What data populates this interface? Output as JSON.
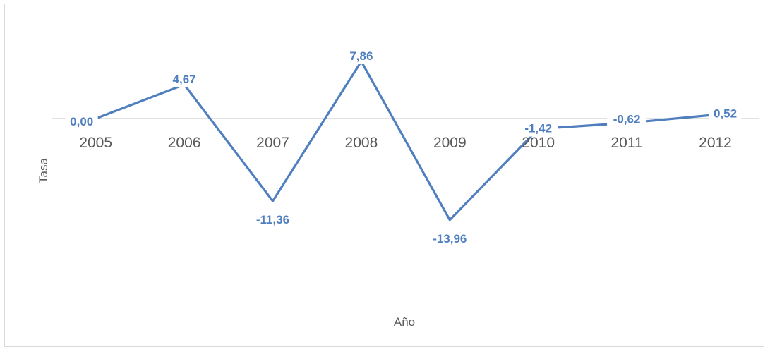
{
  "chart_data": {
    "type": "line",
    "categories": [
      "2005",
      "2006",
      "2007",
      "2008",
      "2009",
      "2010",
      "2011",
      "2012"
    ],
    "series": [
      {
        "values": [
          0.0,
          4.67,
          -11.36,
          7.86,
          -13.96,
          -1.42,
          -0.62,
          0.52
        ],
        "data_labels": [
          "0,00",
          "4,67",
          "-11,36",
          "7,86",
          "-13,96",
          "-1,42",
          "-0,62",
          "0,52"
        ]
      }
    ],
    "xlabel": "Año",
    "ylabel": "Tasa",
    "grid": false,
    "legend": "none",
    "colors": {
      "line": "#4f7fbf",
      "label": "#4f7fbf",
      "axis": "#d9d9d9",
      "text": "#595959"
    }
  }
}
